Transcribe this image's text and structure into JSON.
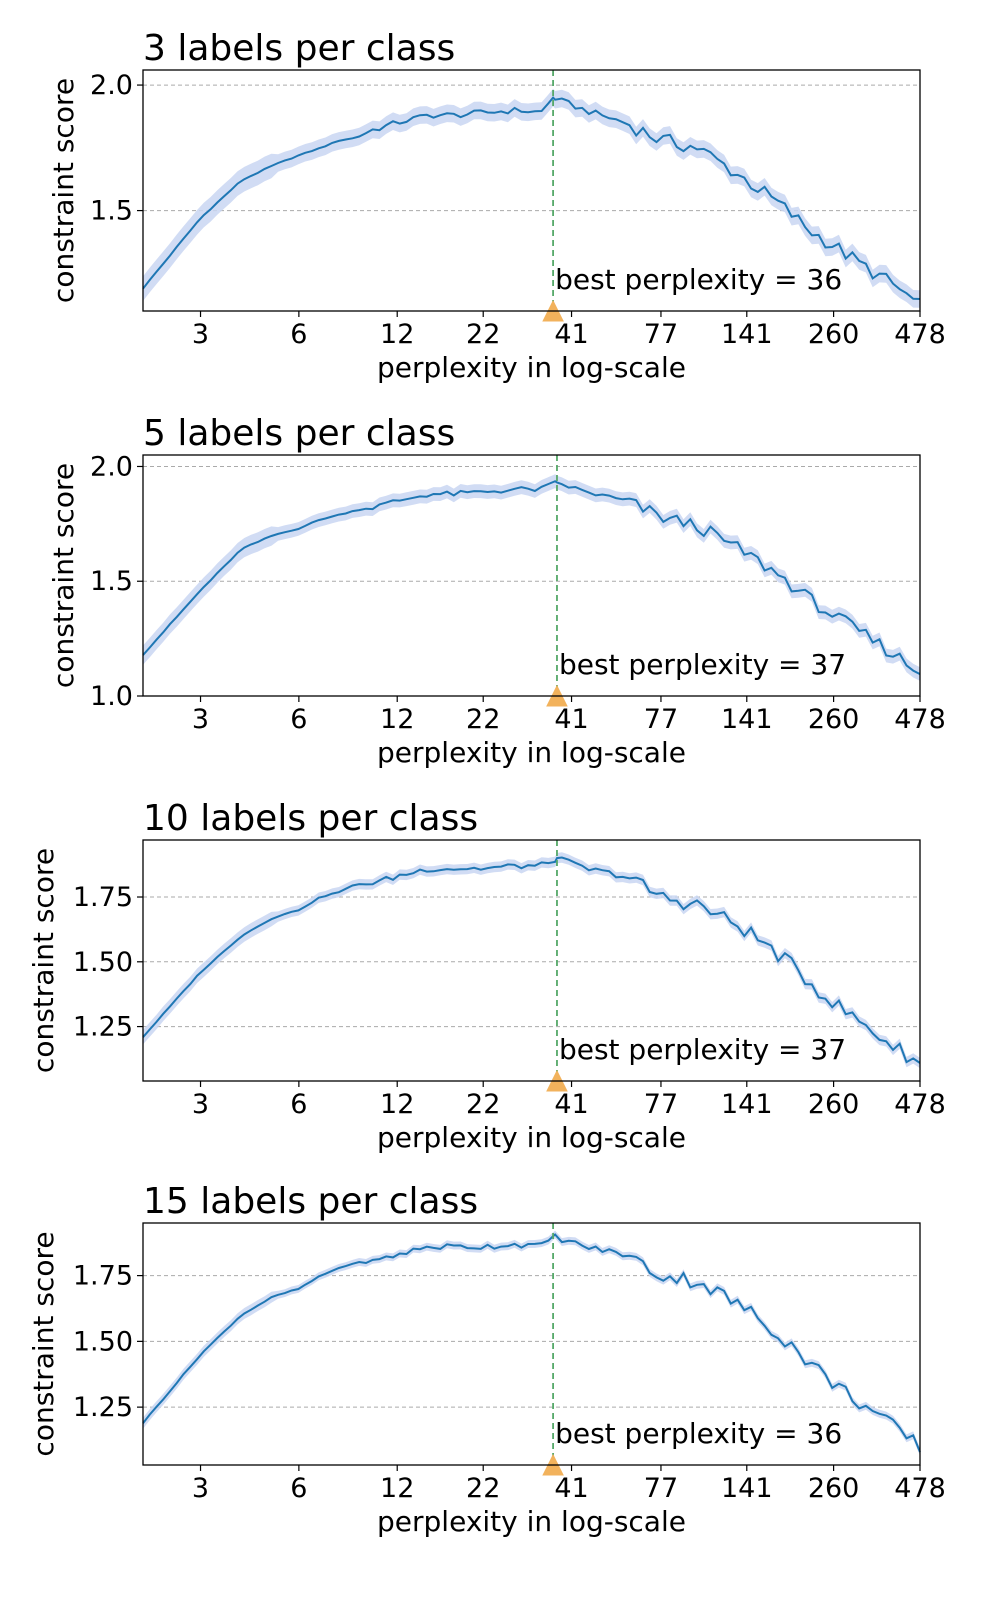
{
  "colors": {
    "line": "#1f77b4",
    "band": "#c9d6f2",
    "vline": "#55a868",
    "marker": "#f2b25c",
    "grid": "#aaaaaa"
  },
  "chart_data": [
    {
      "type": "line",
      "title": "3 labels per class",
      "xlabel": "perplexity in log-scale",
      "ylabel": "constraint score",
      "x_scale": "log",
      "xlim": [
        2,
        478
      ],
      "ylim": [
        1.1,
        2.06
      ],
      "xticks": [
        3,
        6,
        12,
        22,
        41,
        77,
        141,
        260,
        478
      ],
      "yticks": [
        1.5,
        2.0
      ],
      "yticks_labels": [
        "1.5",
        "2.0"
      ],
      "grid": "horizontal dashed",
      "best": {
        "perplexity": 36,
        "label": "best perplexity = 36"
      },
      "band_width": 0.035,
      "anchors": [
        [
          2,
          1.19
        ],
        [
          3,
          1.47
        ],
        [
          4,
          1.62
        ],
        [
          5,
          1.68
        ],
        [
          6,
          1.72
        ],
        [
          7,
          1.75
        ],
        [
          8,
          1.78
        ],
        [
          9,
          1.79
        ],
        [
          10,
          1.82
        ],
        [
          12,
          1.85
        ],
        [
          15,
          1.88
        ],
        [
          18,
          1.88
        ],
        [
          22,
          1.89
        ],
        [
          28,
          1.9
        ],
        [
          33,
          1.89
        ],
        [
          36,
          1.95
        ],
        [
          45,
          1.9
        ],
        [
          60,
          1.85
        ],
        [
          77,
          1.78
        ],
        [
          100,
          1.75
        ],
        [
          141,
          1.62
        ],
        [
          180,
          1.52
        ],
        [
          220,
          1.42
        ],
        [
          260,
          1.36
        ],
        [
          320,
          1.28
        ],
        [
          400,
          1.2
        ],
        [
          478,
          1.12
        ]
      ]
    },
    {
      "type": "line",
      "title": "5 labels per class",
      "xlabel": "perplexity in log-scale",
      "ylabel": "constraint score",
      "x_scale": "log",
      "xlim": [
        2,
        478
      ],
      "ylim": [
        1.0,
        2.05
      ],
      "xticks": [
        3,
        6,
        12,
        22,
        41,
        77,
        141,
        260,
        478
      ],
      "yticks": [
        1.0,
        1.5,
        2.0
      ],
      "yticks_labels": [
        "1.0",
        "1.5",
        "2.0"
      ],
      "grid": "horizontal dashed",
      "best": {
        "perplexity": 37,
        "label": "best perplexity = 37"
      },
      "band_width": 0.03,
      "anchors": [
        [
          2,
          1.18
        ],
        [
          3,
          1.46
        ],
        [
          4,
          1.64
        ],
        [
          5,
          1.7
        ],
        [
          6,
          1.73
        ],
        [
          7,
          1.77
        ],
        [
          8,
          1.79
        ],
        [
          9,
          1.81
        ],
        [
          10,
          1.82
        ],
        [
          12,
          1.85
        ],
        [
          15,
          1.88
        ],
        [
          18,
          1.88
        ],
        [
          22,
          1.89
        ],
        [
          28,
          1.9
        ],
        [
          33,
          1.9
        ],
        [
          37,
          1.93
        ],
        [
          45,
          1.89
        ],
        [
          60,
          1.85
        ],
        [
          77,
          1.78
        ],
        [
          100,
          1.74
        ],
        [
          141,
          1.62
        ],
        [
          180,
          1.52
        ],
        [
          220,
          1.42
        ],
        [
          260,
          1.35
        ],
        [
          320,
          1.27
        ],
        [
          400,
          1.18
        ],
        [
          478,
          1.1
        ]
      ]
    },
    {
      "type": "line",
      "title": "10 labels per class",
      "xlabel": "perplexity in log-scale",
      "ylabel": "constraint score",
      "x_scale": "log",
      "xlim": [
        2,
        478
      ],
      "ylim": [
        1.04,
        1.97
      ],
      "xticks": [
        3,
        6,
        12,
        22,
        41,
        77,
        141,
        260,
        478
      ],
      "yticks": [
        1.25,
        1.5,
        1.75
      ],
      "yticks_labels": [
        "1.25",
        "1.50",
        "1.75"
      ],
      "grid": "horizontal dashed",
      "best": {
        "perplexity": 37,
        "label": "best perplexity = 37"
      },
      "band_width": 0.02,
      "anchors": [
        [
          2,
          1.21
        ],
        [
          3,
          1.46
        ],
        [
          4,
          1.6
        ],
        [
          5,
          1.67
        ],
        [
          6,
          1.7
        ],
        [
          7,
          1.75
        ],
        [
          8,
          1.77
        ],
        [
          9,
          1.8
        ],
        [
          10,
          1.8
        ],
        [
          12,
          1.83
        ],
        [
          15,
          1.86
        ],
        [
          18,
          1.86
        ],
        [
          22,
          1.86
        ],
        [
          28,
          1.87
        ],
        [
          33,
          1.87
        ],
        [
          37,
          1.9
        ],
        [
          45,
          1.86
        ],
        [
          60,
          1.83
        ],
        [
          77,
          1.75
        ],
        [
          100,
          1.72
        ],
        [
          141,
          1.62
        ],
        [
          180,
          1.52
        ],
        [
          220,
          1.42
        ],
        [
          260,
          1.34
        ],
        [
          320,
          1.26
        ],
        [
          400,
          1.17
        ],
        [
          478,
          1.11
        ]
      ]
    },
    {
      "type": "line",
      "title": "15 labels per class",
      "xlabel": "perplexity in log-scale",
      "ylabel": "constraint score",
      "x_scale": "log",
      "xlim": [
        2,
        478
      ],
      "ylim": [
        1.03,
        1.95
      ],
      "xticks": [
        3,
        6,
        12,
        22,
        41,
        77,
        141,
        260,
        478
      ],
      "yticks": [
        1.25,
        1.5,
        1.75
      ],
      "yticks_labels": [
        "1.25",
        "1.50",
        "1.75"
      ],
      "grid": "horizontal dashed",
      "best": {
        "perplexity": 36,
        "label": "best perplexity = 36"
      },
      "band_width": 0.015,
      "anchors": [
        [
          2,
          1.19
        ],
        [
          3,
          1.45
        ],
        [
          4,
          1.6
        ],
        [
          5,
          1.67
        ],
        [
          6,
          1.7
        ],
        [
          7,
          1.75
        ],
        [
          8,
          1.78
        ],
        [
          9,
          1.8
        ],
        [
          10,
          1.8
        ],
        [
          12,
          1.83
        ],
        [
          15,
          1.86
        ],
        [
          18,
          1.86
        ],
        [
          22,
          1.86
        ],
        [
          28,
          1.87
        ],
        [
          33,
          1.86
        ],
        [
          36,
          1.9
        ],
        [
          45,
          1.86
        ],
        [
          60,
          1.83
        ],
        [
          77,
          1.75
        ],
        [
          100,
          1.73
        ],
        [
          141,
          1.62
        ],
        [
          180,
          1.52
        ],
        [
          220,
          1.42
        ],
        [
          260,
          1.34
        ],
        [
          320,
          1.26
        ],
        [
          400,
          1.17
        ],
        [
          478,
          1.1
        ]
      ]
    }
  ]
}
